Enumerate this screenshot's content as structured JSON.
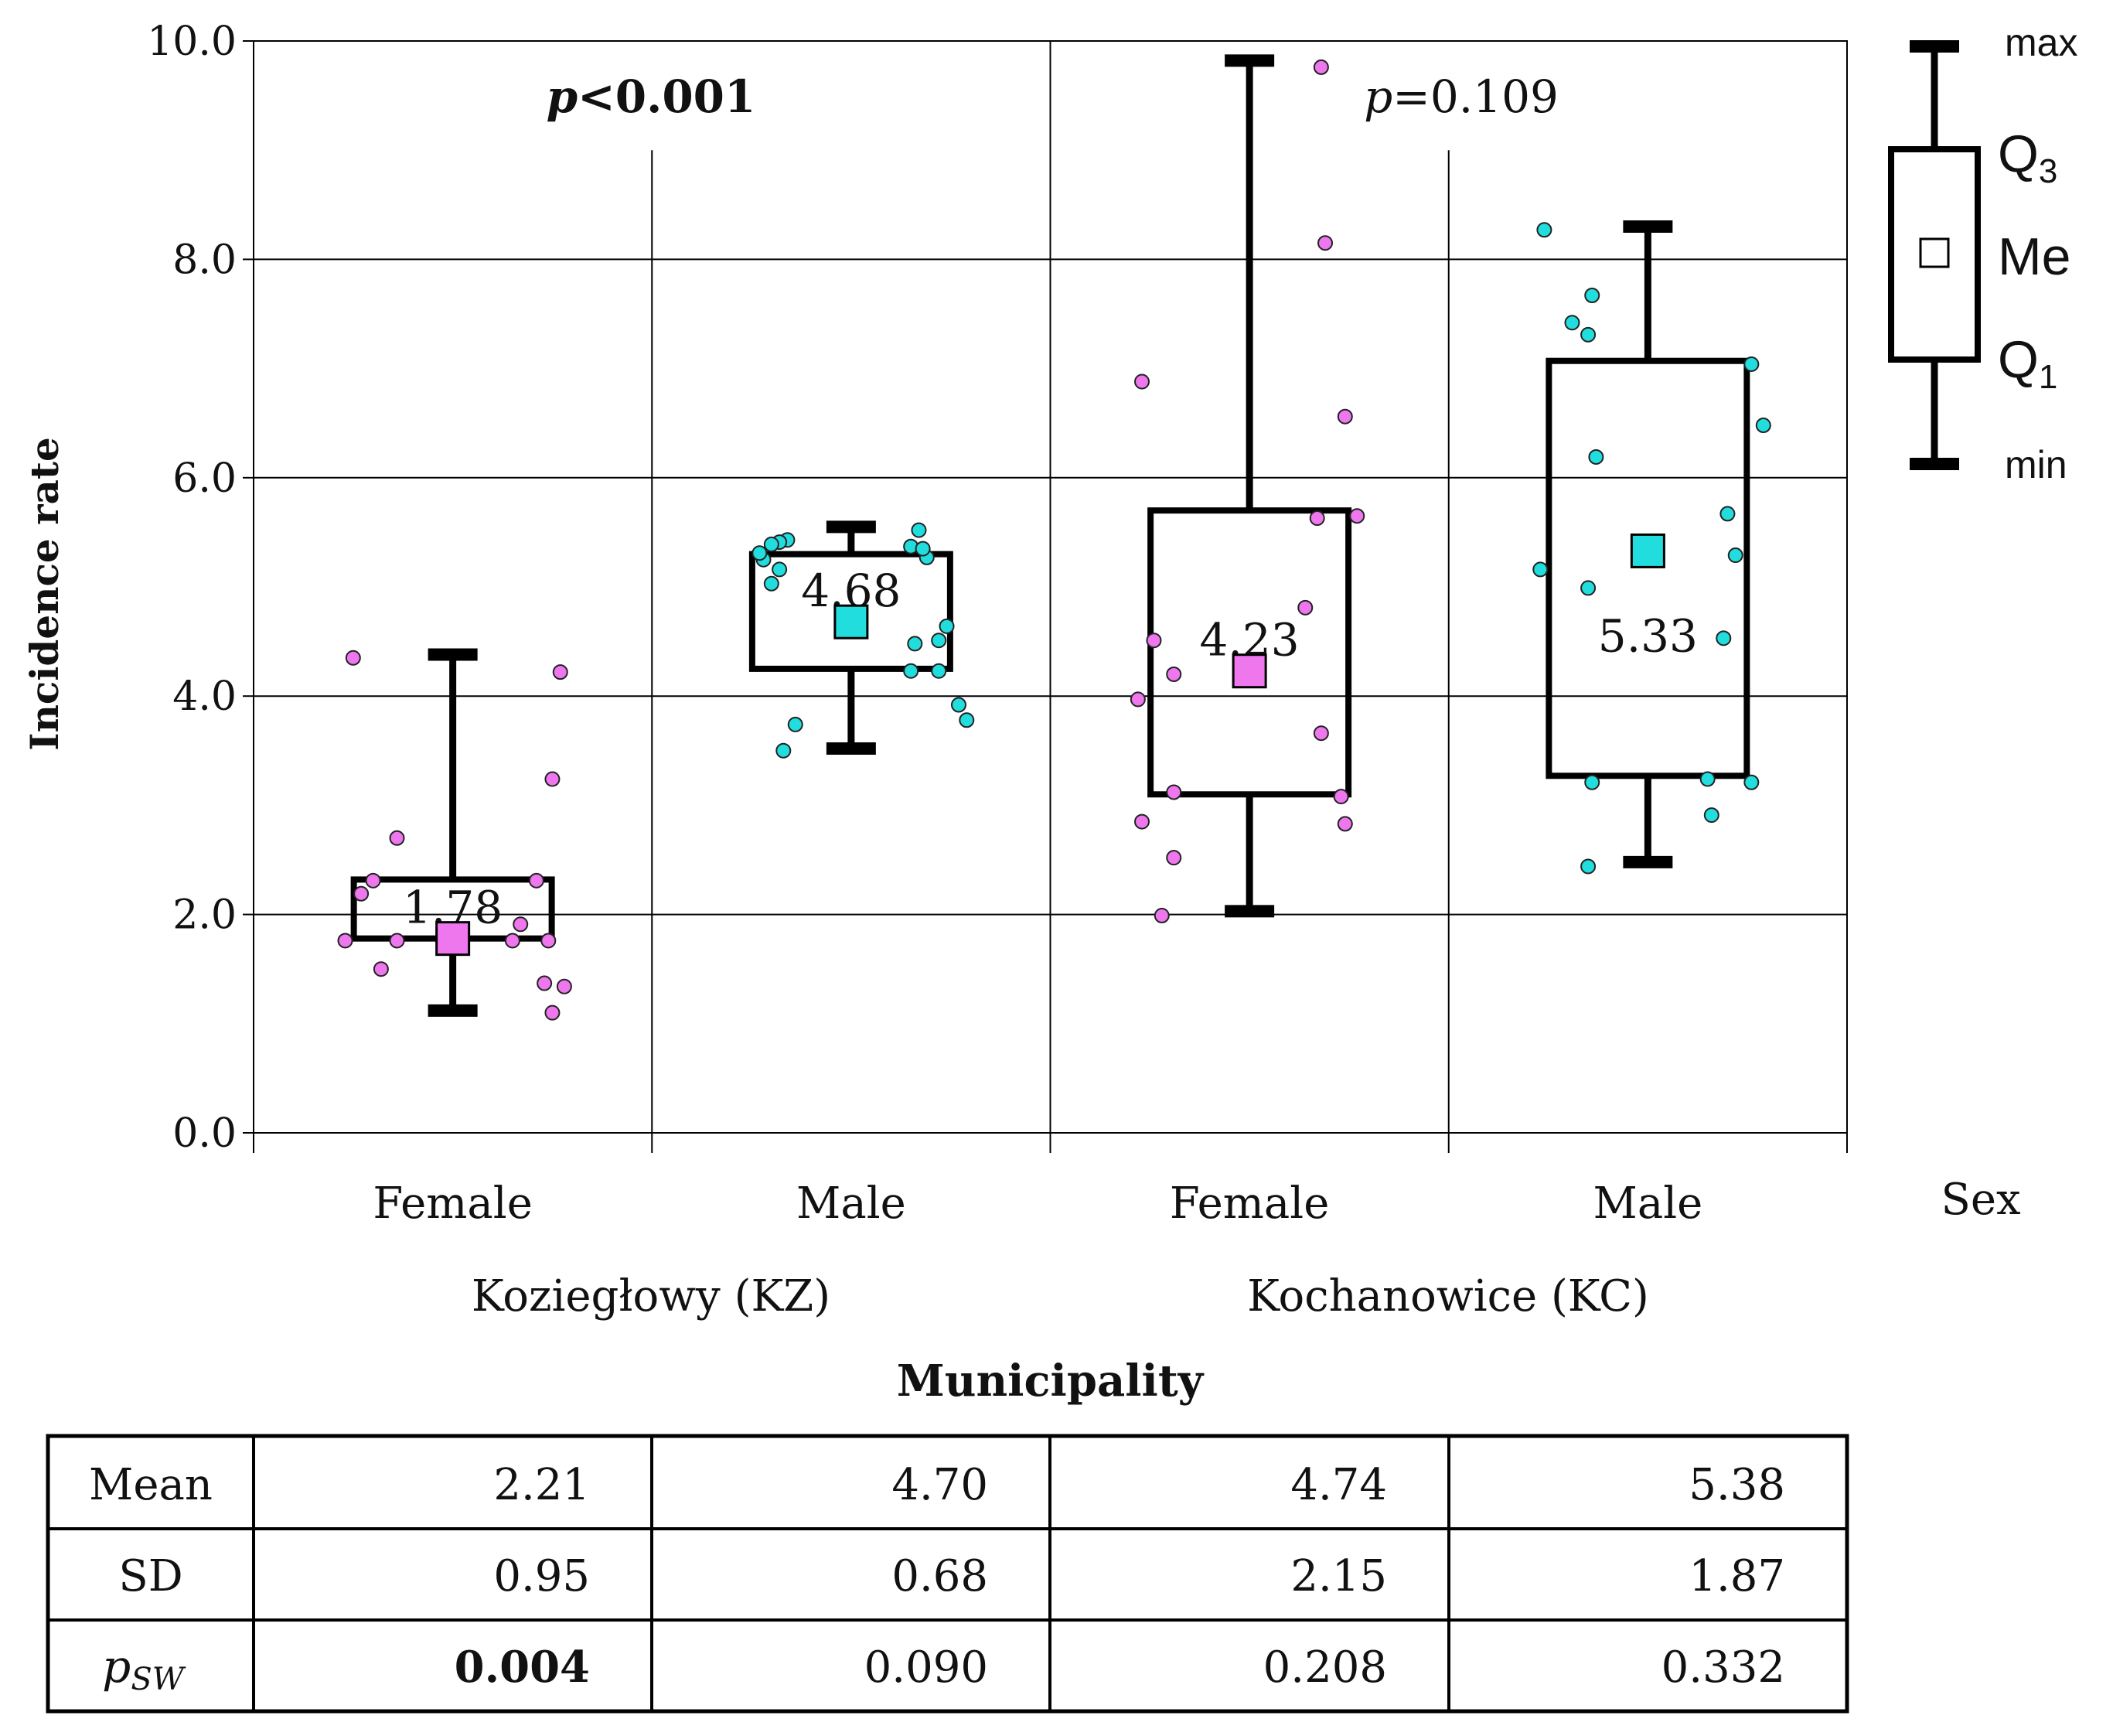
{
  "chart_data": {
    "type": "box",
    "ylabel": "Incidence rate",
    "xlabel": "Municipality",
    "sex_label": "Sex",
    "ylim": [
      0,
      10
    ],
    "yticks": [
      "0.0",
      "2.0",
      "4.0",
      "6.0",
      "8.0",
      "10.0"
    ],
    "groups": [
      {
        "name": "Koziegłowy (KZ)",
        "p_text": {
          "italic": "p",
          "rest": "<0.001",
          "bold": true
        },
        "boxes": [
          {
            "category": "Female",
            "color": "#ee77ee",
            "min": 1.12,
            "q1": 1.78,
            "median": 1.78,
            "q3": 2.32,
            "max": 4.38,
            "median_label": "1.78",
            "points": [
              [
                -0.25,
                4.35
              ],
              [
                0.27,
                4.22
              ],
              [
                0.25,
                3.24
              ],
              [
                -0.14,
                2.7
              ],
              [
                -0.2,
                2.31
              ],
              [
                -0.23,
                2.19
              ],
              [
                0.21,
                2.31
              ],
              [
                0.17,
                1.91
              ],
              [
                -0.27,
                1.76
              ],
              [
                -0.14,
                1.76
              ],
              [
                0.15,
                1.76
              ],
              [
                0.24,
                1.76
              ],
              [
                -0.18,
                1.5
              ],
              [
                0.23,
                1.37
              ],
              [
                0.28,
                1.34
              ],
              [
                0.25,
                1.1
              ]
            ]
          },
          {
            "category": "Male",
            "color": "#22dddd",
            "min": 3.52,
            "q1": 4.25,
            "median": 4.68,
            "q3": 5.3,
            "max": 5.55,
            "median_label": "4.68",
            "points": [
              [
                -0.16,
                5.43
              ],
              [
                -0.18,
                5.41
              ],
              [
                -0.2,
                5.39
              ],
              [
                0.17,
                5.52
              ],
              [
                0.15,
                5.37
              ],
              [
                0.19,
                5.27
              ],
              [
                -0.22,
                5.25
              ],
              [
                -0.18,
                5.16
              ],
              [
                -0.2,
                5.03
              ],
              [
                0.24,
                4.64
              ],
              [
                0.22,
                4.51
              ],
              [
                0.16,
                4.48
              ],
              [
                0.15,
                4.23
              ],
              [
                0.22,
                4.23
              ],
              [
                0.27,
                3.92
              ],
              [
                -0.14,
                3.74
              ],
              [
                -0.17,
                3.5
              ],
              [
                0.29,
                3.78
              ],
              [
                0.18,
                5.35
              ],
              [
                -0.23,
                5.31
              ]
            ]
          }
        ]
      },
      {
        "name": "Kochanowice (KC)",
        "p_text": {
          "italic": "p",
          "rest": "=0.109",
          "bold": false
        },
        "boxes": [
          {
            "category": "Female",
            "color": "#ee77ee",
            "min": 2.03,
            "q1": 3.1,
            "median": 4.23,
            "q3": 5.7,
            "max": 9.82,
            "median_label": "4.23",
            "points": [
              [
                0.18,
                9.76
              ],
              [
                0.19,
                8.15
              ],
              [
                -0.27,
                6.88
              ],
              [
                0.24,
                6.56
              ],
              [
                0.17,
                5.63
              ],
              [
                0.27,
                5.65
              ],
              [
                0.14,
                4.81
              ],
              [
                -0.24,
                4.51
              ],
              [
                -0.19,
                4.2
              ],
              [
                -0.28,
                3.97
              ],
              [
                0.18,
                3.66
              ],
              [
                -0.19,
                3.12
              ],
              [
                0.23,
                3.08
              ],
              [
                -0.27,
                2.85
              ],
              [
                0.24,
                2.83
              ],
              [
                -0.19,
                2.52
              ],
              [
                -0.22,
                1.99
              ]
            ]
          },
          {
            "category": "Male",
            "color": "#22dddd",
            "min": 2.48,
            "q1": 3.27,
            "median": 5.33,
            "q3": 7.07,
            "max": 8.3,
            "median_label": "5.33",
            "points": [
              [
                -0.26,
                8.27
              ],
              [
                -0.14,
                7.67
              ],
              [
                -0.19,
                7.42
              ],
              [
                -0.15,
                7.31
              ],
              [
                0.26,
                7.04
              ],
              [
                0.29,
                6.48
              ],
              [
                -0.13,
                6.19
              ],
              [
                0.2,
                5.67
              ],
              [
                0.22,
                5.29
              ],
              [
                -0.27,
                5.16
              ],
              [
                -0.15,
                4.99
              ],
              [
                0.19,
                4.53
              ],
              [
                -0.14,
                3.21
              ],
              [
                0.15,
                3.24
              ],
              [
                0.26,
                3.21
              ],
              [
                0.16,
                2.91
              ],
              [
                -0.15,
                2.44
              ]
            ]
          }
        ]
      }
    ],
    "legend": {
      "max": "max",
      "q3": "Q",
      "q3_sub": "3",
      "me": "Me",
      "q1": "Q",
      "q1_sub": "1",
      "min": "min"
    }
  },
  "stats_table": {
    "rows": [
      {
        "label": "Mean",
        "values": [
          "2.21",
          "4.70",
          "4.74",
          "5.38"
        ]
      },
      {
        "label": "SD",
        "values": [
          "0.95",
          "0.68",
          "2.15",
          "1.87"
        ]
      },
      {
        "label_main": "p",
        "label_sub": "SW",
        "values": [
          "0.004",
          "0.090",
          "0.208",
          "0.332"
        ],
        "bold_index": 0
      }
    ]
  }
}
